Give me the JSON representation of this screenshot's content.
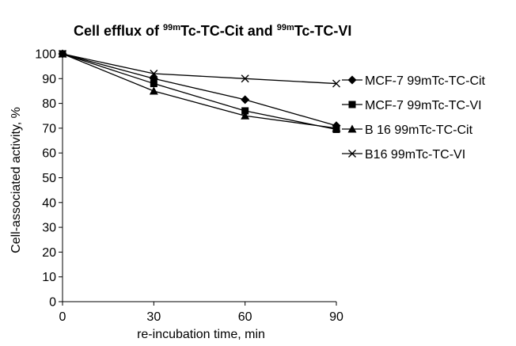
{
  "chart_data": {
    "type": "line",
    "title": {
      "parts": [
        {
          "text": "Cell efflux of ",
          "sup": false
        },
        {
          "text": "99m",
          "sup": true
        },
        {
          "text": "Tc-TC-Cit and ",
          "sup": false
        },
        {
          "text": "99m",
          "sup": true
        },
        {
          "text": "Tc-TC-VI",
          "sup": false
        }
      ]
    },
    "xlabel": "re-incubation time, min",
    "ylabel": "Cell-associated activity, %",
    "x": [
      0,
      30,
      60,
      90
    ],
    "xticks": [
      0,
      30,
      60,
      90
    ],
    "yticks": [
      0,
      10,
      20,
      30,
      40,
      50,
      60,
      70,
      80,
      90,
      100
    ],
    "xlim": [
      0,
      90
    ],
    "ylim": [
      0,
      100
    ],
    "grid": false,
    "legend_position": "right",
    "series": [
      {
        "name": "MCF-7 99mTc-TC-Cit",
        "marker": "diamond",
        "values": [
          100,
          90,
          81.5,
          71
        ]
      },
      {
        "name": "MCF-7 99mTc-TC-VI",
        "marker": "square",
        "values": [
          100,
          88,
          77,
          69.5
        ]
      },
      {
        "name": "B 16 99mTc-TC-Cit",
        "marker": "triangle",
        "values": [
          100,
          85,
          75,
          70
        ]
      },
      {
        "name": "B16 99mTc-TC-VI",
        "marker": "x",
        "values": [
          100,
          92,
          90,
          88
        ]
      }
    ]
  }
}
